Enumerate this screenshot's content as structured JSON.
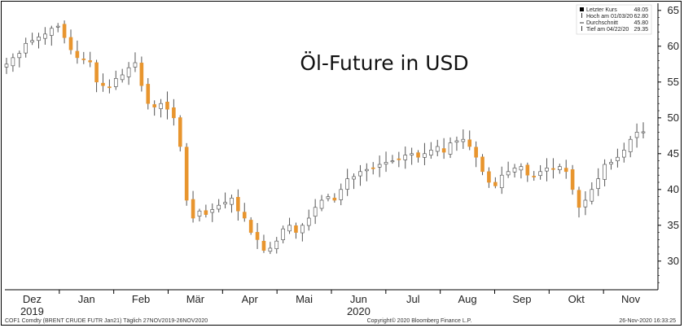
{
  "chart_data": {
    "type": "candlestick",
    "title": "Öl-Future in USD",
    "ylim": [
      26,
      66
    ],
    "y_ticks": [
      30,
      35,
      40,
      45,
      50,
      55,
      60,
      65
    ],
    "y_axis_position": "right",
    "months": [
      {
        "label": "Dez",
        "year": "2019"
      },
      {
        "label": "Jan",
        "year": ""
      },
      {
        "label": "Feb",
        "year": ""
      },
      {
        "label": "Mär",
        "year": ""
      },
      {
        "label": "Apr",
        "year": ""
      },
      {
        "label": "Mai",
        "year": ""
      },
      {
        "label": "Jun",
        "year": "2020"
      },
      {
        "label": "Jul",
        "year": ""
      },
      {
        "label": "Aug",
        "year": ""
      },
      {
        "label": "Sep",
        "year": ""
      },
      {
        "label": "Okt",
        "year": ""
      },
      {
        "label": "Nov",
        "year": ""
      }
    ],
    "legend": [
      {
        "label": "Letzter Kurs",
        "value": "48.05",
        "marker": "square"
      },
      {
        "label": "Hoch am 01/03/20",
        "value": "62.80",
        "marker": "up-tick"
      },
      {
        "label": "Durchschnitt",
        "value": "45.80",
        "marker": "dash"
      },
      {
        "label": "Tief am 04/22/20",
        "value": "29.35",
        "marker": "down-tick"
      }
    ],
    "legend_position": "top-right",
    "up_color": "#ffffff",
    "down_color": "#e8952e",
    "wick_color": "#555555",
    "grid": false,
    "closes": [
      57.5,
      58.4,
      59.0,
      60.4,
      60.8,
      61.3,
      61.7,
      62.5,
      62.8,
      61.2,
      59.5,
      58.4,
      58.2,
      57.8,
      55.0,
      54.5,
      54.2,
      55.5,
      56.0,
      57.0,
      57.7,
      54.5,
      52.0,
      51.5,
      52.0,
      51.2,
      50.0,
      46.0,
      38.5,
      36.0,
      37.0,
      36.5,
      37.2,
      37.8,
      38.2,
      38.8,
      37.0,
      36.0,
      34.0,
      33.0,
      31.5,
      31.8,
      32.8,
      34.5,
      35.0,
      34.0,
      35.0,
      36.0,
      37.5,
      38.5,
      39.0,
      38.5,
      40.0,
      41.5,
      41.8,
      42.5,
      42.8,
      43.0,
      43.5,
      43.8,
      44.0,
      44.2,
      44.8,
      45.0,
      44.5,
      45.0,
      45.5,
      46.0,
      45.2,
      46.5,
      46.8,
      47.0,
      46.0,
      44.5,
      42.5,
      41.0,
      40.5,
      42.0,
      42.5,
      43.0,
      43.2,
      42.0,
      41.8,
      42.5,
      43.0,
      42.8,
      43.2,
      42.5,
      40.0,
      37.5,
      38.5,
      40.0,
      41.5,
      43.5,
      43.8,
      44.5,
      45.5,
      47.0,
      48.0,
      48.05
    ]
  },
  "footer": {
    "left": "COF1 Comdty (BRENT CRUDE FUTR Jan21) Täglich 27NOV2019-26NOV2020",
    "center": "Copyright© 2020 Bloomberg Finance L.P.",
    "right": "26-Nov-2020 16:33:25"
  }
}
